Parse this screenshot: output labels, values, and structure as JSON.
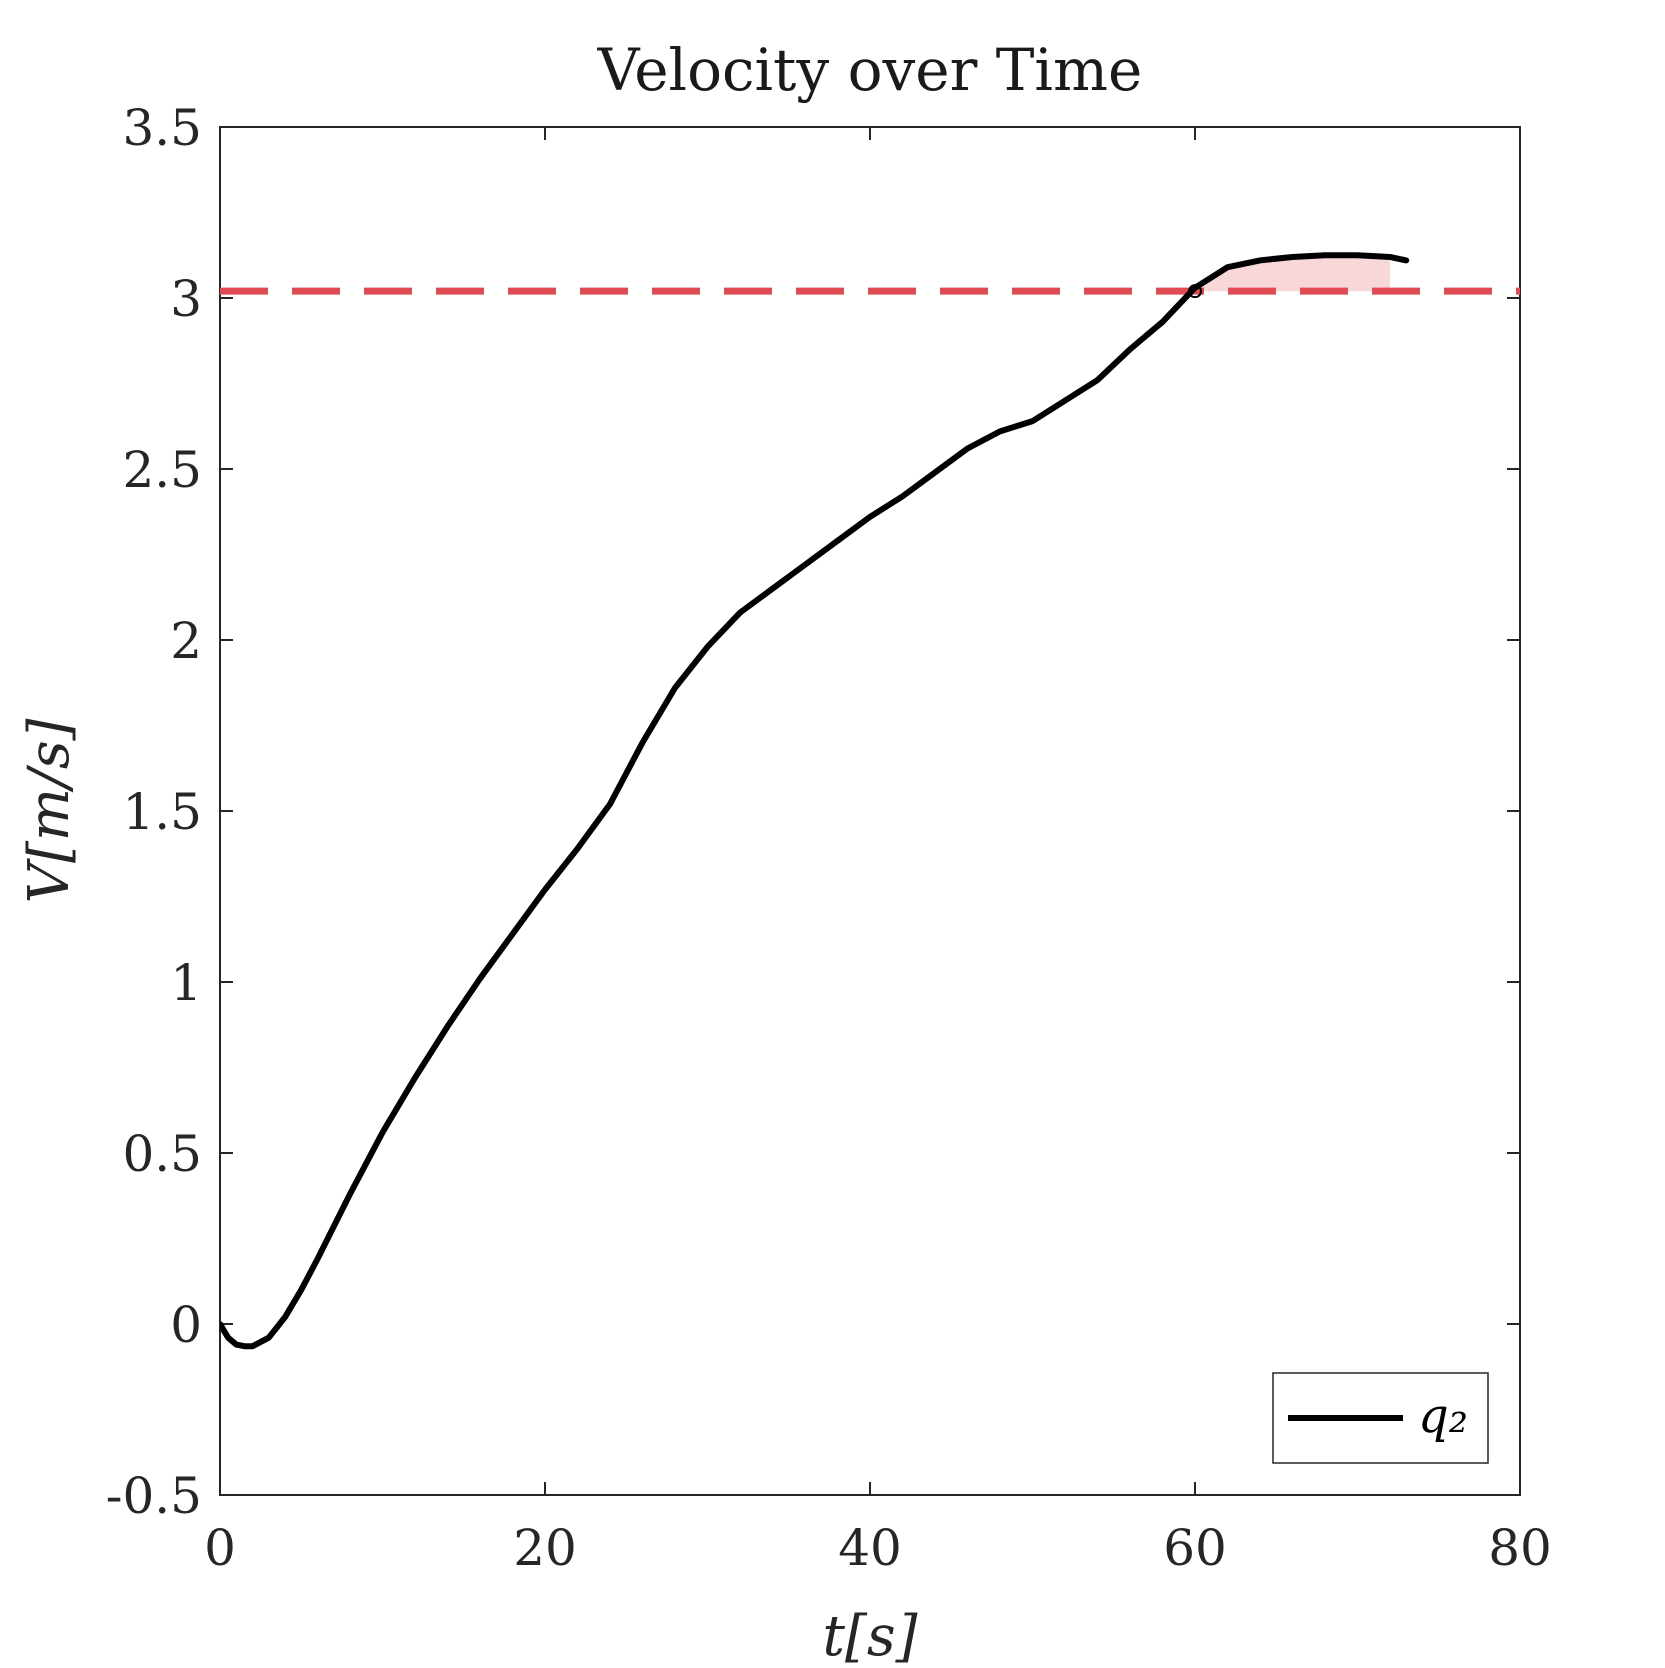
{
  "chart_data": {
    "type": "line",
    "title": "Velocity over Time",
    "xlabel": "t[s]",
    "ylabel": "V[m/s]",
    "xlim": [
      0,
      80
    ],
    "ylim": [
      -0.5,
      3.5
    ],
    "xticks": [
      "0",
      "20",
      "40",
      "60",
      "80"
    ],
    "yticks": [
      "-0.5",
      "0",
      "0.5",
      "1",
      "1.5",
      "2",
      "2.5",
      "3",
      "3.5"
    ],
    "grid": false,
    "legend": {
      "position": "bottom-right",
      "entries": [
        "q₂"
      ]
    },
    "series": [
      {
        "name": "q₂",
        "color": "#000000",
        "x": [
          0,
          0.5,
          1,
          1.5,
          2,
          3,
          4,
          5,
          6,
          8,
          10,
          12,
          14,
          16,
          18,
          20,
          22,
          24,
          25,
          26,
          28,
          30,
          32,
          34,
          36,
          38,
          40,
          42,
          44,
          46,
          48,
          50,
          52,
          54,
          56,
          58,
          60,
          61,
          62,
          64,
          66,
          68,
          70,
          72,
          73
        ],
        "y": [
          0.0,
          -0.04,
          -0.06,
          -0.065,
          -0.065,
          -0.04,
          0.02,
          0.1,
          0.19,
          0.38,
          0.56,
          0.72,
          0.87,
          1.01,
          1.14,
          1.27,
          1.39,
          1.52,
          1.61,
          1.7,
          1.86,
          1.98,
          2.08,
          2.15,
          2.22,
          2.29,
          2.36,
          2.42,
          2.49,
          2.56,
          2.61,
          2.64,
          2.7,
          2.76,
          2.85,
          2.93,
          3.03,
          3.06,
          3.09,
          3.11,
          3.12,
          3.125,
          3.125,
          3.12,
          3.11
        ]
      },
      {
        "name": "",
        "style": "dashed",
        "color": "#e04a52",
        "x": [
          0,
          10,
          20,
          30,
          40,
          50,
          60,
          70,
          80
        ],
        "y": [
          3.02,
          3.02,
          3.02,
          3.02,
          3.02,
          3.02,
          3.02,
          3.02,
          3.02
        ]
      }
    ],
    "shaded_region": {
      "color": "#e04a52",
      "x_from": 60,
      "x_to": 72
    }
  }
}
